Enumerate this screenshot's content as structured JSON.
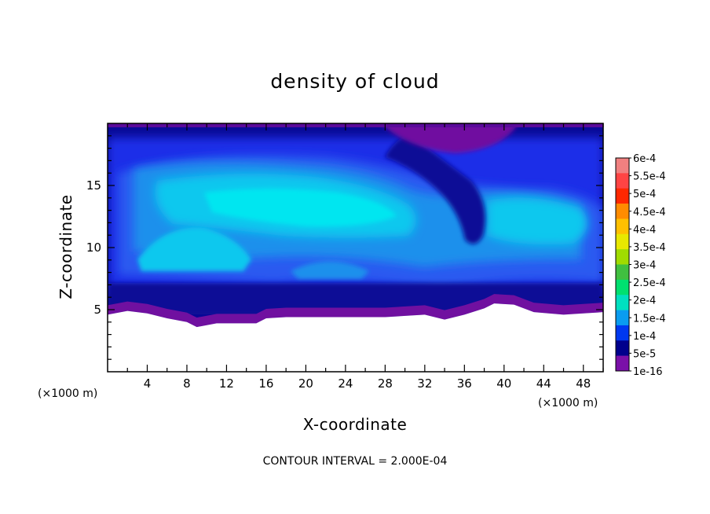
{
  "chart_data": {
    "type": "heatmap",
    "title": "density of cloud",
    "xlabel": "X-coordinate",
    "ylabel": "Z-coordinate",
    "x_unit": "(×1000 m)",
    "y_unit": "(×1000 m)",
    "x_ticks": [
      4,
      8,
      12,
      16,
      20,
      24,
      28,
      32,
      36,
      40,
      44,
      48
    ],
    "y_ticks": [
      5,
      10,
      15
    ],
    "xlim": [
      0,
      50
    ],
    "ylim": [
      0,
      20
    ],
    "footer": "CONTOUR INTERVAL = 2.000E-04",
    "colorbar": {
      "labels": [
        "6e-4",
        "5.5e-4",
        "5e-4",
        "4.5e-4",
        "4e-4",
        "3.5e-4",
        "3e-4",
        "2.5e-4",
        "2e-4",
        "1.5e-4",
        "1e-4",
        "5e-5",
        "1e-16"
      ],
      "colors": [
        "#f08080",
        "#ff4444",
        "#ff2800",
        "#ff8c00",
        "#ffc000",
        "#e8e800",
        "#a0dc00",
        "#40c040",
        "#00e070",
        "#00e0c0",
        "#0a9cf0",
        "#0038f0",
        "#00008c",
        "#7a10a8"
      ]
    },
    "field_colors": {
      "purple": "#7010a0",
      "navy": "#0a0a96",
      "blue": "#1a2ee8",
      "blue2": "#2a5af0",
      "skyblue": "#1a90ec",
      "cyan_light": "#10c8ee",
      "cyan": "#00e6f0"
    },
    "cloud_base_profile": [
      [
        0,
        4.6
      ],
      [
        2,
        4.9
      ],
      [
        4,
        4.7
      ],
      [
        6,
        4.3
      ],
      [
        8,
        4.0
      ],
      [
        9,
        3.6
      ],
      [
        11,
        3.9
      ],
      [
        13,
        3.9
      ],
      [
        15,
        3.9
      ],
      [
        16,
        4.3
      ],
      [
        18,
        4.4
      ],
      [
        20,
        4.4
      ],
      [
        24,
        4.4
      ],
      [
        28,
        4.4
      ],
      [
        32,
        4.6
      ],
      [
        34,
        4.2
      ],
      [
        36,
        4.6
      ],
      [
        38,
        5.1
      ],
      [
        39,
        5.5
      ],
      [
        41,
        5.4
      ],
      [
        43,
        4.8
      ],
      [
        46,
        4.6
      ],
      [
        48,
        4.7
      ],
      [
        50,
        4.8
      ]
    ]
  }
}
